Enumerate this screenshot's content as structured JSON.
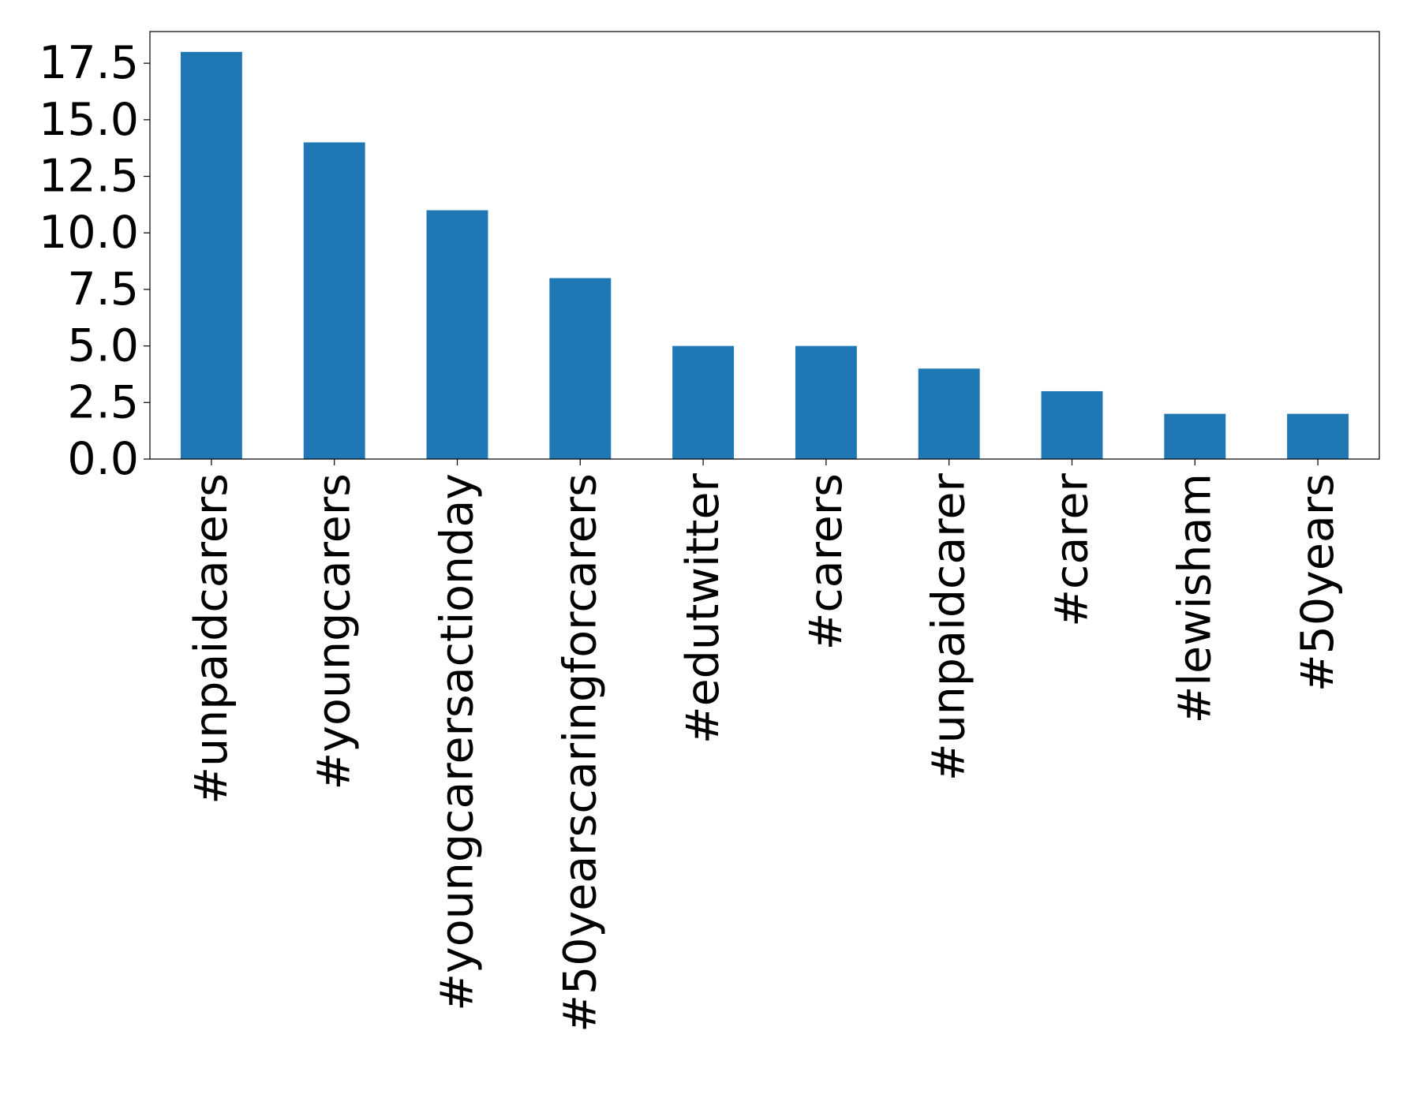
{
  "chart_data": {
    "type": "bar",
    "title": "",
    "xlabel": "",
    "ylabel": "",
    "categories": [
      "#unpaidcarers",
      "#youngcarers",
      "#youngcarersactionday",
      "#50yearscaringforcarers",
      "#edutwitter",
      "#carers",
      "#unpaidcarer",
      "#carer",
      "#lewisham",
      "#50years"
    ],
    "values": [
      18,
      14,
      11,
      8,
      5,
      5,
      4,
      3,
      2,
      2
    ],
    "ylim": [
      0,
      18.9
    ],
    "yticks": [
      0.0,
      2.5,
      5.0,
      7.5,
      10.0,
      12.5,
      15.0,
      17.5
    ],
    "ytick_labels": [
      "0.0",
      "2.5",
      "5.0",
      "7.5",
      "10.0",
      "12.5",
      "15.0",
      "17.5"
    ],
    "bar_color": "#1f77b4",
    "grid": false,
    "legend": "none"
  }
}
